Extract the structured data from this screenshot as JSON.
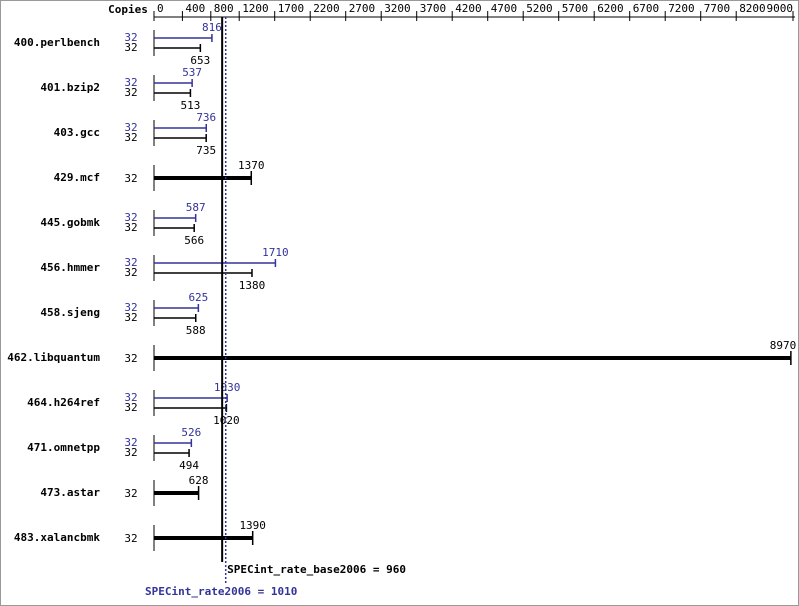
{
  "chart_data": {
    "type": "bar",
    "orientation": "horizontal",
    "copies_label": "Copies",
    "categories": [
      "400.perlbench",
      "401.bzip2",
      "403.gcc",
      "429.mcf",
      "445.gobmk",
      "456.hmmer",
      "458.sjeng",
      "462.libquantum",
      "464.h264ref",
      "471.omnetpp",
      "473.astar",
      "483.xalancbmk"
    ],
    "series": [
      {
        "color": "#000000",
        "values": [
          653,
          513,
          735,
          1370,
          566,
          1380,
          588,
          8970,
          1020,
          494,
          628,
          1390
        ],
        "copies": [
          32,
          32,
          32,
          32,
          32,
          32,
          32,
          32,
          32,
          32,
          32,
          32
        ]
      },
      {
        "color": "#333399",
        "values": [
          816,
          537,
          736,
          null,
          587,
          1710,
          625,
          null,
          1030,
          526,
          null,
          null
        ],
        "copies": [
          32,
          32,
          32,
          null,
          32,
          32,
          32,
          null,
          32,
          32,
          null,
          null
        ]
      }
    ],
    "xlim": [
      0,
      9000
    ],
    "xticks": [
      0,
      400,
      800,
      1200,
      1700,
      2200,
      2700,
      3200,
      3700,
      4200,
      4700,
      5200,
      5700,
      6200,
      6700,
      7200,
      7700,
      8200,
      9000
    ],
    "reference_lines": [
      {
        "label": "SPECint_rate_base2006 = 960",
        "value": 960,
        "color": "#000000",
        "style": "solid"
      },
      {
        "label": "SPECint_rate2006 = 1010",
        "value": 1010,
        "color": "#333399",
        "style": "dotted"
      }
    ]
  }
}
